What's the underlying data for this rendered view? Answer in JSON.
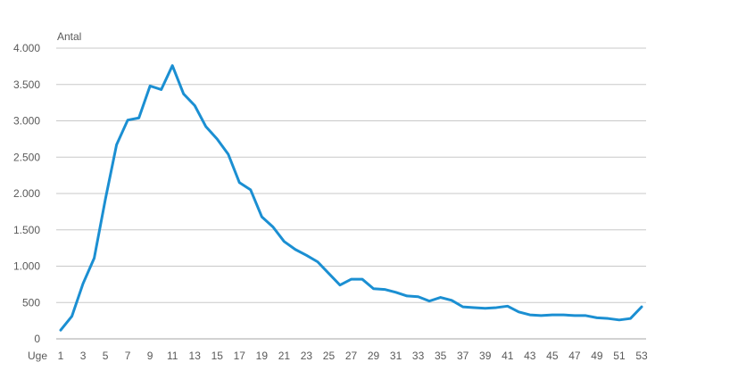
{
  "chart_data": {
    "type": "line",
    "ylabel": "Antal",
    "xlabel": "Uge",
    "x": [
      1,
      2,
      3,
      4,
      5,
      6,
      7,
      8,
      9,
      10,
      11,
      12,
      13,
      14,
      15,
      16,
      17,
      18,
      19,
      20,
      21,
      22,
      23,
      24,
      25,
      26,
      27,
      28,
      29,
      30,
      31,
      32,
      33,
      34,
      35,
      36,
      37,
      38,
      39,
      40,
      41,
      42,
      43,
      44,
      45,
      46,
      47,
      48,
      49,
      50,
      51,
      52,
      53
    ],
    "xticks": [
      1,
      3,
      5,
      7,
      9,
      11,
      13,
      15,
      17,
      19,
      21,
      23,
      25,
      27,
      29,
      31,
      33,
      35,
      37,
      39,
      41,
      43,
      45,
      47,
      49,
      51,
      53
    ],
    "yticks": [
      0,
      500,
      1000,
      1500,
      2000,
      2500,
      3000,
      3500,
      4000
    ],
    "ytick_labels": [
      "0",
      "500",
      "1.000",
      "1.500",
      "2.000",
      "2.500",
      "3.000",
      "3.500",
      "4.000"
    ],
    "ylim": [
      0,
      4000
    ],
    "xlim": [
      1,
      53
    ],
    "grid": "horizontal",
    "legend": "none",
    "series": [
      {
        "color": "#1b8fd2",
        "values": [
          120,
          310,
          760,
          1110,
          1920,
          2670,
          3010,
          3040,
          3480,
          3430,
          3760,
          3370,
          3210,
          2920,
          2750,
          2540,
          2150,
          2050,
          1680,
          1540,
          1340,
          1230,
          1150,
          1060,
          900,
          740,
          820,
          820,
          690,
          680,
          640,
          590,
          580,
          520,
          570,
          530,
          440,
          430,
          420,
          430,
          450,
          370,
          330,
          320,
          330,
          330,
          320,
          320,
          290,
          280,
          260,
          280,
          440
        ]
      }
    ]
  }
}
